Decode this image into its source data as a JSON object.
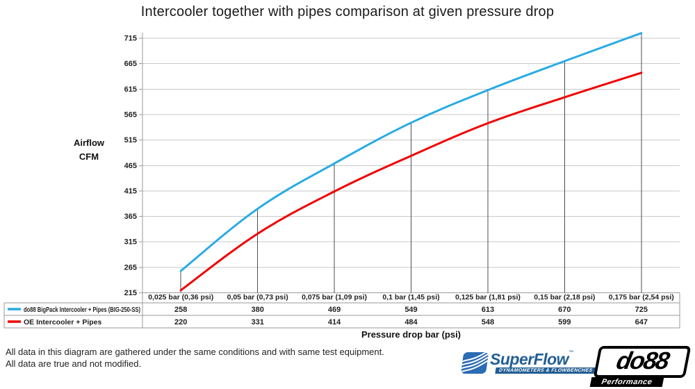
{
  "title": "Intercooler together with pipes comparison at given pressure drop",
  "y_axis": {
    "title_line1": "Airflow",
    "title_line2": "CFM"
  },
  "x_axis": {
    "title": "Pressure drop bar (psi)"
  },
  "chart_data": {
    "type": "line",
    "title": "Intercooler together with pipes comparison at given pressure drop",
    "categories": [
      "0,025 bar (0,36 psi)",
      "0,05 bar (0,73 psi)",
      "0,075 bar (1,09 psi)",
      "0,1 bar (1,45 psi)",
      "0,125 bar (1,81 psi)",
      "0,15 bar (2,18 psi)",
      "0,175 bar (2,54 psi)"
    ],
    "series": [
      {
        "name": "do88 BigPack Intercooler + Pipes (BIG-250-SS)",
        "color": "#29abe2",
        "values": [
          258,
          380,
          469,
          549,
          613,
          670,
          725
        ]
      },
      {
        "name": "OE Intercooler + Pipes",
        "color": "#f00000",
        "values": [
          220,
          331,
          414,
          484,
          548,
          599,
          647
        ]
      }
    ],
    "xlabel": "Pressure drop bar (psi)",
    "ylabel": "Airflow CFM",
    "ylim": [
      215,
      715
    ],
    "ytick_step": 50,
    "yticks": [
      715,
      665,
      615,
      565,
      515,
      465,
      415,
      365,
      315,
      265,
      215
    ],
    "grid": true,
    "droplines": true,
    "legend_position": "table-left"
  },
  "footer": {
    "line1": "All data in this diagram are gathered under the same conditions and with same test equipment.",
    "line2": "All data are true and not modified."
  },
  "logos": {
    "superflow": {
      "name": "SuperFlow",
      "trademark": "™",
      "tagline": "DYNAMOMETERS & FLOWBENCHES",
      "brand_color": "#235e94"
    },
    "do88": {
      "name": "do88",
      "tagline": "Performance",
      "brand_color": "#000000"
    }
  },
  "colors": {
    "gridline": "#c9c9c9",
    "axis": "#9a9a9a",
    "dropline": "#4d4d4d",
    "table_border": "#9a9a9a",
    "text": "#1f1f1f"
  }
}
